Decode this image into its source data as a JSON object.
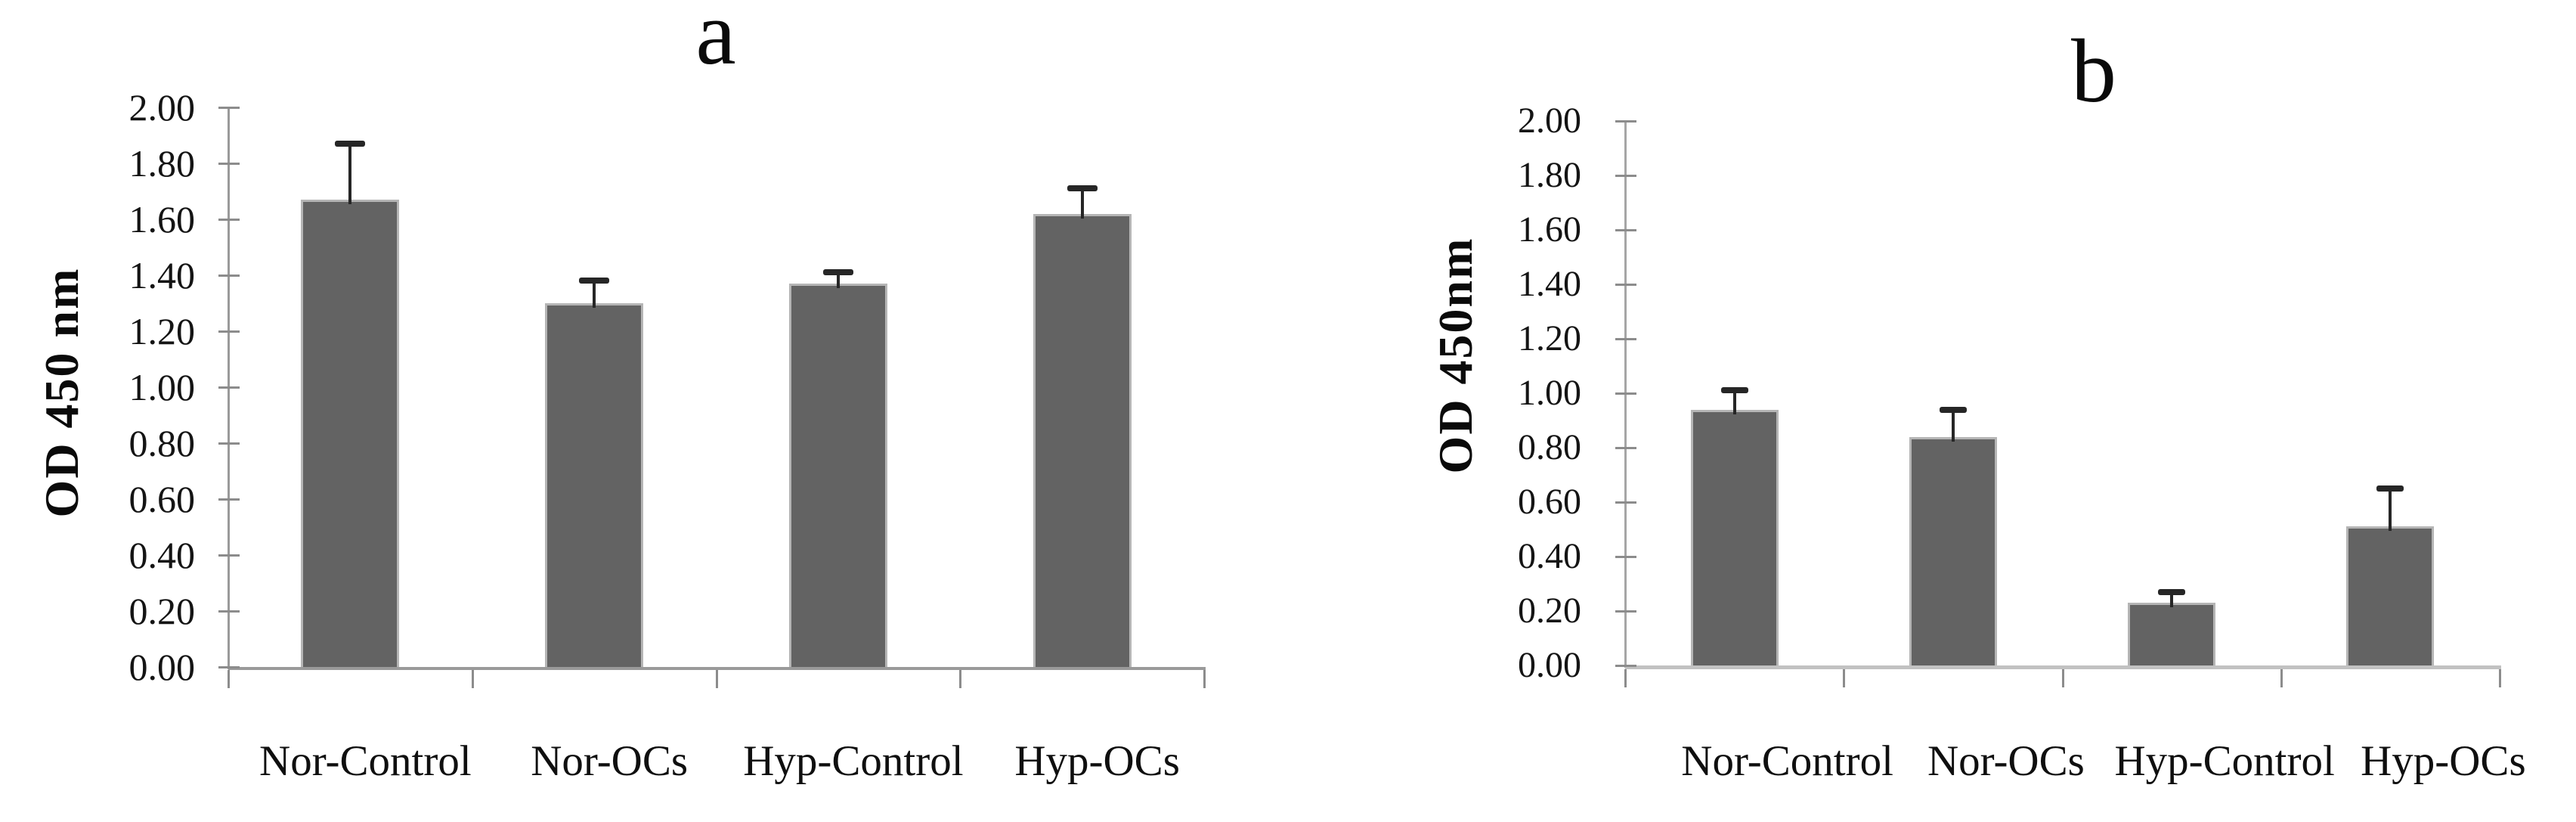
{
  "figure": {
    "background": "#ffffff",
    "text_color": "#111111"
  },
  "chart_data": [
    {
      "type": "bar",
      "title": "a",
      "ylabel": "OD 450 nm",
      "xlabel": "",
      "categories": [
        "Nor-Control",
        "Nor-OCs",
        "Hyp-Control",
        "Hyp-OCs"
      ],
      "values": [
        1.67,
        1.3,
        1.37,
        1.62
      ],
      "errors_plus": [
        0.2,
        0.08,
        0.04,
        0.09
      ],
      "ylim": [
        0,
        2
      ],
      "ytick_step": 0.2,
      "yticks": [
        "0.00",
        "0.20",
        "0.40",
        "0.60",
        "0.80",
        "1.00",
        "1.20",
        "1.40",
        "1.60",
        "1.80",
        "2.00"
      ],
      "grid": false,
      "legend": false,
      "bar_color": "#636363",
      "bar_edge_color": "#b5b5b5",
      "axis_color": "#9a9a9a",
      "tick_color": "#8c8c8c",
      "error_color": "#262626"
    },
    {
      "type": "bar",
      "title": "b",
      "ylabel": "OD 450nm",
      "xlabel": "",
      "categories": [
        "Nor-Control",
        "Nor-OCs",
        "Hyp-Control",
        "Hyp-OCs"
      ],
      "values": [
        0.94,
        0.84,
        0.23,
        0.51
      ],
      "errors_plus": [
        0.07,
        0.1,
        0.04,
        0.14
      ],
      "ylim": [
        0,
        2
      ],
      "ytick_step": 0.2,
      "yticks": [
        "0.00",
        "0.20",
        "0.40",
        "0.60",
        "0.80",
        "1.00",
        "1.20",
        "1.40",
        "1.60",
        "1.80",
        "2.00"
      ],
      "grid": false,
      "legend": false,
      "bar_color": "#636363",
      "bar_edge_color": "#b5b5b5",
      "axis_color": "#a6a6a6",
      "tick_color": "#8c8c8c",
      "error_color": "#262626"
    }
  ]
}
